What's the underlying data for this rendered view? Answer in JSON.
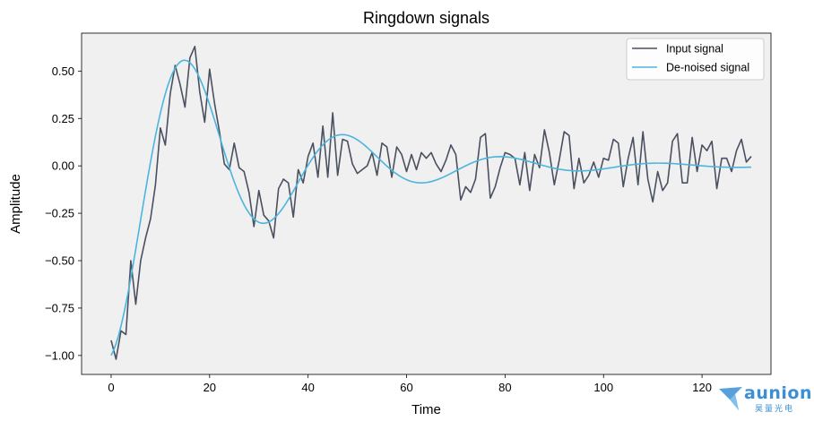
{
  "chart_data": {
    "type": "line",
    "title": "Ringdown signals",
    "xlabel": "Time",
    "ylabel": "Amplitude",
    "xlim": [
      -6,
      134
    ],
    "ylim": [
      -1.1,
      0.7
    ],
    "xticks": [
      0,
      20,
      40,
      60,
      80,
      100,
      120
    ],
    "yticks": [
      -1.0,
      -0.75,
      -0.5,
      -0.25,
      0.0,
      0.25,
      0.5
    ],
    "ytick_labels": [
      "−1.00",
      "−0.75",
      "−0.50",
      "−0.25",
      "0.00",
      "0.25",
      "0.50"
    ],
    "grid": false,
    "legend": "top-right",
    "background": "#f0f0f0",
    "series": [
      {
        "name": "Input signal",
        "color": "#4a5060",
        "values": [
          -0.92,
          -1.02,
          -0.87,
          -0.89,
          -0.5,
          -0.73,
          -0.5,
          -0.38,
          -0.28,
          -0.1,
          0.2,
          0.11,
          0.38,
          0.53,
          0.43,
          0.31,
          0.57,
          0.63,
          0.39,
          0.23,
          0.51,
          0.33,
          0.18,
          0.01,
          -0.02,
          0.12,
          -0.01,
          -0.03,
          -0.14,
          -0.32,
          -0.13,
          -0.26,
          -0.29,
          -0.38,
          -0.12,
          -0.07,
          -0.09,
          -0.27,
          -0.02,
          -0.09,
          0.05,
          0.12,
          -0.06,
          0.21,
          -0.06,
          0.28,
          -0.05,
          0.14,
          0.13,
          0.01,
          -0.04,
          -0.02,
          0.0,
          0.07,
          -0.05,
          0.12,
          0.1,
          -0.06,
          0.1,
          0.06,
          -0.03,
          0.06,
          -0.02,
          0.07,
          0.04,
          0.07,
          0.01,
          -0.03,
          0.03,
          0.11,
          0.06,
          -0.18,
          -0.11,
          -0.14,
          -0.07,
          0.15,
          0.17,
          -0.17,
          -0.11,
          -0.01,
          0.07,
          0.06,
          0.04,
          -0.1,
          0.07,
          -0.13,
          0.06,
          -0.01,
          0.19,
          0.07,
          -0.1,
          0.03,
          0.18,
          0.16,
          -0.12,
          0.04,
          -0.09,
          -0.05,
          0.02,
          -0.06,
          0.04,
          0.03,
          0.14,
          0.12,
          -0.11,
          0.04,
          0.15,
          -0.1,
          0.18,
          -0.07,
          -0.19,
          -0.03,
          -0.13,
          -0.09,
          0.13,
          0.17,
          -0.09,
          -0.09,
          0.15,
          -0.03,
          0.11,
          0.08,
          0.13,
          -0.12,
          0.04,
          0.04,
          -0.03,
          0.08,
          0.14,
          0.02,
          0.05
        ]
      },
      {
        "name": "De-noised signal",
        "color": "#4bb5de",
        "damping": 0.088,
        "omega": 0.205,
        "note_values_generated": false,
        "values": []
      }
    ]
  },
  "logo": {
    "name": "aunion",
    "sub": "昊量光电",
    "color": "#3a8fd6"
  }
}
